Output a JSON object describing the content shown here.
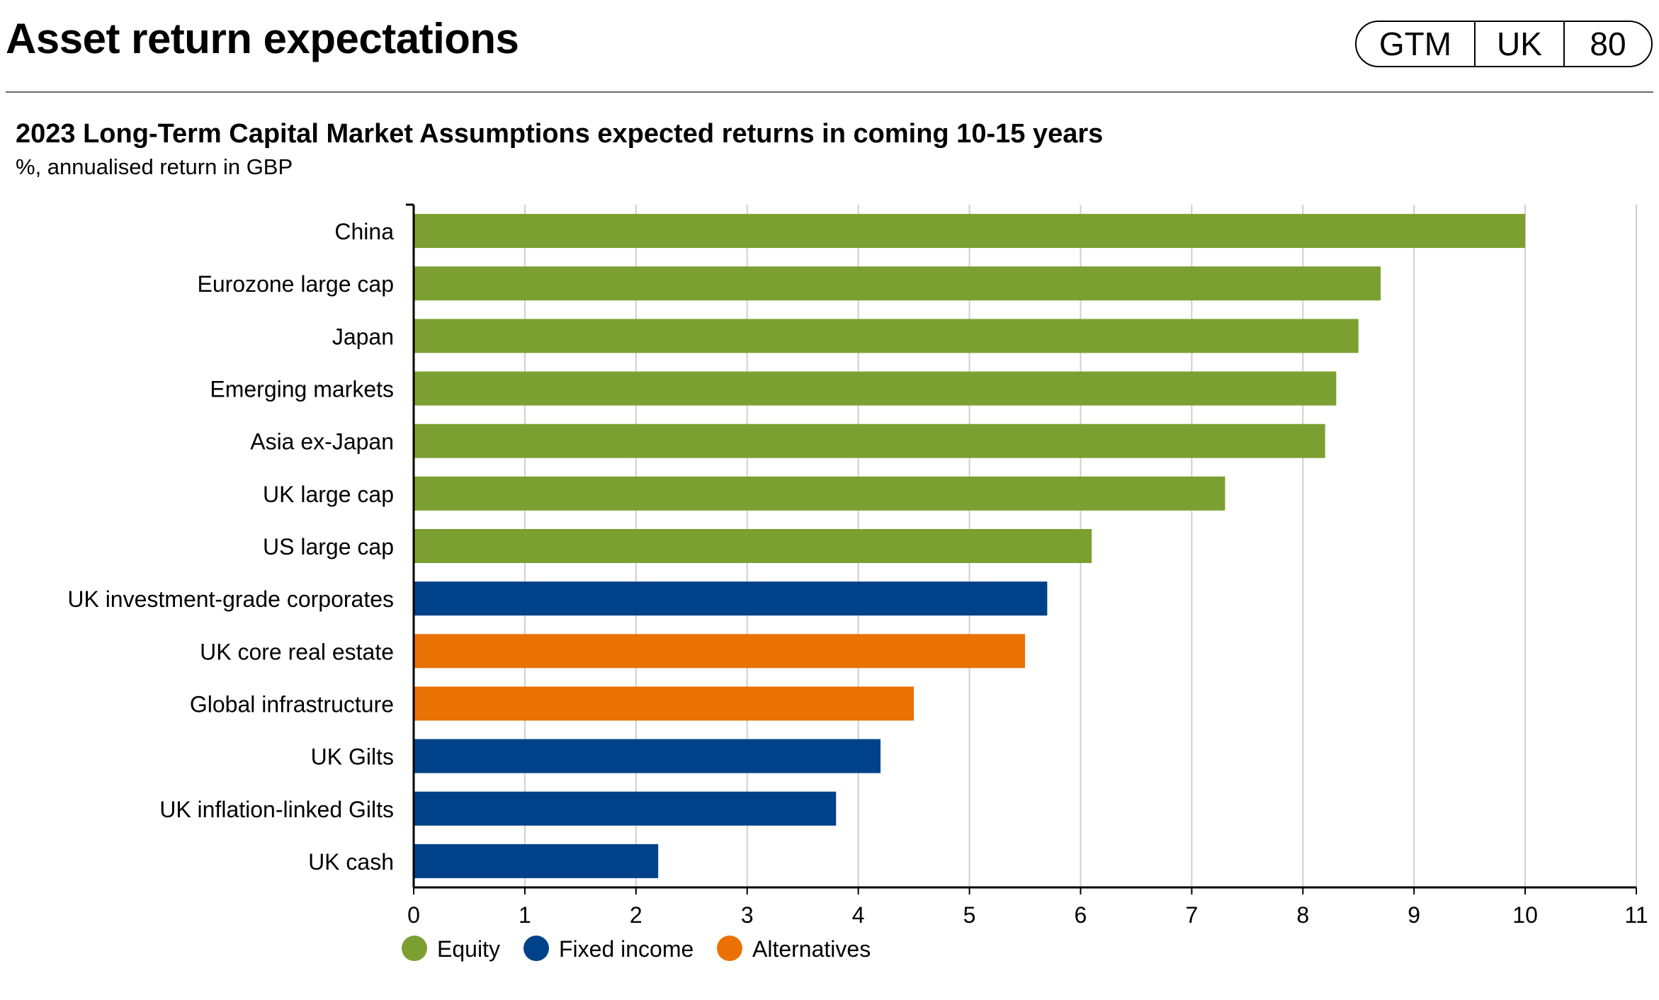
{
  "header": {
    "title": "Asset return expectations",
    "badge": [
      "GTM",
      "UK",
      "80"
    ]
  },
  "chart_data": {
    "type": "bar",
    "orientation": "horizontal",
    "title": "2023 Long-Term Capital Market Assumptions expected returns in coming 10-15 years",
    "subtitle": "%, annualised return in GBP",
    "xlim": [
      0,
      11
    ],
    "xticks": [
      0,
      1,
      2,
      3,
      4,
      5,
      6,
      7,
      8,
      9,
      10,
      11
    ],
    "grid": "vertical",
    "legend_position": "bottom-left",
    "categories": [
      "China",
      "Eurozone large cap",
      "Japan",
      "Emerging markets",
      "Asia ex-Japan",
      "UK large cap",
      "US large cap",
      "UK investment-grade corporates",
      "UK core real estate",
      "Global infrastructure",
      "UK Gilts",
      "UK inflation-linked Gilts",
      "UK cash"
    ],
    "values": [
      10.0,
      8.7,
      8.5,
      8.3,
      8.2,
      7.3,
      6.1,
      5.7,
      5.5,
      4.5,
      4.2,
      3.8,
      2.2
    ],
    "groups": [
      "Equity",
      "Equity",
      "Equity",
      "Equity",
      "Equity",
      "Equity",
      "Equity",
      "Fixed income",
      "Alternatives",
      "Alternatives",
      "Fixed income",
      "Fixed income",
      "Fixed income"
    ],
    "legend": [
      {
        "name": "Equity",
        "color": "#7ba031"
      },
      {
        "name": "Fixed income",
        "color": "#00428a"
      },
      {
        "name": "Alternatives",
        "color": "#ea7103"
      }
    ]
  }
}
